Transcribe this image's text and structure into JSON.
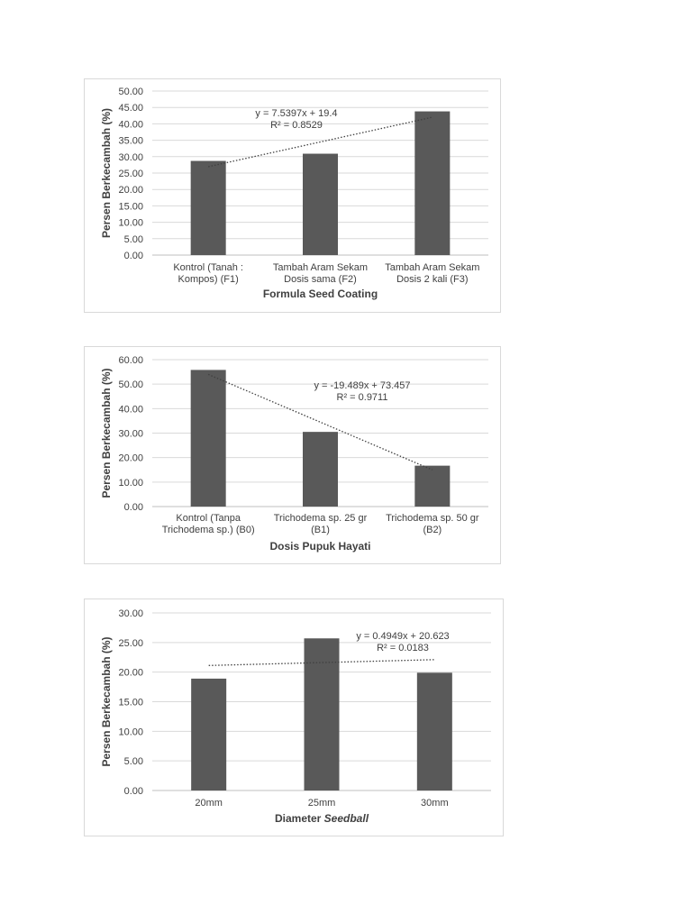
{
  "chart_data": [
    {
      "type": "bar",
      "categories": [
        [
          "Kontrol (Tanah :",
          "Kompos) (F1)"
        ],
        [
          "Tambah Aram Sekam",
          "Dosis sama (F2)"
        ],
        [
          "Tambah Aram Sekam",
          "Dosis 2 kali (F3)"
        ]
      ],
      "values": [
        28.7,
        30.9,
        43.8
      ],
      "xlabel": "Formula Seed Coating",
      "xlabel_italic": "",
      "ylabel": "Persen Berkecambah (%)",
      "ylim": [
        0,
        50
      ],
      "yticks": [
        "0.00",
        "5.00",
        "10.00",
        "15.00",
        "20.00",
        "25.00",
        "30.00",
        "35.00",
        "40.00",
        "45.00",
        "50.00"
      ],
      "grid": true,
      "bar_color": "#595959",
      "trendline": {
        "type": "linear",
        "slope": 7.5397,
        "intercept": 19.4,
        "equation": "y = 7.5397x + 19.4",
        "r2": "R² = 0.8529"
      }
    },
    {
      "type": "bar",
      "categories": [
        [
          "Kontrol (Tanpa",
          "Trichodema sp.) (B0)"
        ],
        [
          "Trichodema sp. 25 gr",
          "(B1)"
        ],
        [
          "Trichodema sp. 50 gr",
          "(B2)"
        ]
      ],
      "values": [
        55.8,
        30.5,
        16.7
      ],
      "xlabel": "Dosis Pupuk Hayati",
      "xlabel_italic": "",
      "ylabel": "Persen Berkecambah (%)",
      "ylim": [
        0,
        60
      ],
      "yticks": [
        "0.00",
        "10.00",
        "20.00",
        "30.00",
        "40.00",
        "50.00",
        "60.00"
      ],
      "grid": true,
      "bar_color": "#595959",
      "trendline": {
        "type": "linear",
        "slope": -19.489,
        "intercept": 73.457,
        "equation": "y = -19.489x + 73.457",
        "r2": "R² = 0.9711"
      }
    },
    {
      "type": "bar",
      "categories": [
        [
          "20mm"
        ],
        [
          "25mm"
        ],
        [
          "30mm"
        ]
      ],
      "values": [
        18.9,
        25.7,
        19.9
      ],
      "xlabel": "Diameter ",
      "xlabel_italic": "Seedball",
      "ylabel": "Persen Berkecambah (%)",
      "ylim": [
        0,
        30
      ],
      "yticks": [
        "0.00",
        "5.00",
        "10.00",
        "15.00",
        "20.00",
        "25.00",
        "30.00"
      ],
      "grid": true,
      "bar_color": "#595959",
      "trendline": {
        "type": "linear",
        "slope": 0.4949,
        "intercept": 20.623,
        "equation": "y = 0.4949x + 20.623",
        "r2": "R² = 0.0183"
      }
    }
  ]
}
